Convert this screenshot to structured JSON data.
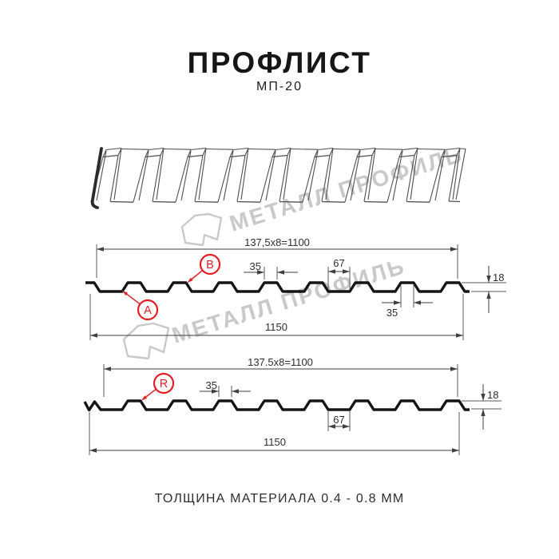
{
  "header": {
    "title": "ПРОФЛИСТ",
    "subtitle": "МП-20"
  },
  "watermark": {
    "text": "МЕТАЛЛ ПРОФИЛЬ"
  },
  "colors": {
    "accent_red": "#e31e24",
    "profile_ink": "#141414",
    "line": "#3f3f3f",
    "watermark_gray": "#c9c9c9"
  },
  "sections": [
    {
      "id": "top-profile-section",
      "dims": {
        "pitch_formula": "137,5x8=1100",
        "total_width": "1150",
        "rib_top_width": "35",
        "rib_base_width": "67",
        "height": "18",
        "rib_top_width_bottom": "35"
      },
      "callouts": [
        "A",
        "B"
      ]
    },
    {
      "id": "bottom-profile-section",
      "dims": {
        "pitch_formula": "137.5x8=1100",
        "total_width": "1150",
        "rib_top_width": "35",
        "valley_width": "67",
        "height": "18"
      },
      "callouts": [
        "R"
      ]
    }
  ],
  "footer": {
    "note": "ТОЛЩИНА МАТЕРИАЛА 0.4 - 0.8 ММ"
  }
}
